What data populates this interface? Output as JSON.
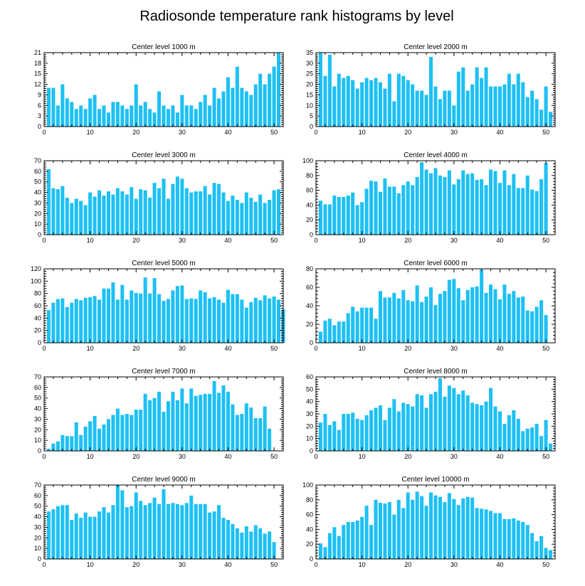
{
  "figure": {
    "title": "Radiosonde temperature rank histograms by level",
    "bar_color": "#1ec0f4"
  },
  "chart_data": [
    {
      "type": "bar",
      "title": "Center level 1000 m",
      "xlim": [
        0,
        52
      ],
      "xticks": [
        0,
        10,
        20,
        30,
        40,
        50
      ],
      "ylim": [
        0,
        21
      ],
      "yticks": [
        0,
        3,
        6,
        9,
        12,
        15,
        18,
        21
      ],
      "values": [
        11,
        11,
        6,
        12,
        8,
        7,
        5,
        6,
        5,
        8,
        9,
        5,
        6,
        4,
        7,
        7,
        6,
        5,
        6,
        12,
        6,
        7,
        5,
        4,
        10,
        6,
        5,
        6,
        4,
        9,
        6,
        6,
        5,
        7,
        9,
        6,
        11,
        8,
        10,
        14,
        11,
        17,
        11,
        10,
        9,
        12,
        15,
        12,
        15,
        17,
        21
      ]
    },
    {
      "type": "bar",
      "title": "Center level 2000 m",
      "xlim": [
        0,
        52
      ],
      "xticks": [
        0,
        10,
        20,
        30,
        40,
        50
      ],
      "ylim": [
        0,
        35
      ],
      "yticks": [
        0,
        5,
        10,
        15,
        20,
        25,
        30,
        35
      ],
      "values": [
        35,
        24,
        34,
        19,
        25,
        23,
        24,
        22,
        18,
        21,
        23,
        22,
        23,
        21,
        18,
        25,
        12,
        25,
        24,
        22,
        20,
        17,
        17,
        15,
        33,
        19,
        13,
        17,
        17,
        10,
        26,
        28,
        17,
        20,
        28,
        23,
        28,
        19,
        19,
        19,
        20,
        25,
        20,
        25,
        21,
        14,
        17,
        13,
        8,
        19,
        7
      ]
    },
    {
      "type": "bar",
      "title": "Center level 3000 m",
      "xlim": [
        0,
        52
      ],
      "xticks": [
        0,
        10,
        20,
        30,
        40,
        50
      ],
      "ylim": [
        0,
        70
      ],
      "yticks": [
        0,
        10,
        20,
        30,
        40,
        50,
        60,
        70
      ],
      "values": [
        62,
        44,
        43,
        46,
        35,
        30,
        34,
        32,
        28,
        40,
        36,
        42,
        37,
        41,
        38,
        44,
        41,
        38,
        45,
        34,
        43,
        42,
        35,
        49,
        44,
        53,
        34,
        48,
        55,
        53,
        44,
        40,
        41,
        41,
        46,
        38,
        49,
        48,
        40,
        32,
        37,
        33,
        30,
        40,
        35,
        31,
        38,
        30,
        33,
        42,
        43
      ]
    },
    {
      "type": "bar",
      "title": "Center level 4000 m",
      "xlim": [
        0,
        52
      ],
      "xticks": [
        0,
        10,
        20,
        30,
        40,
        50
      ],
      "ylim": [
        0,
        100
      ],
      "yticks": [
        0,
        20,
        40,
        60,
        80,
        100
      ],
      "values": [
        46,
        41,
        41,
        53,
        51,
        51,
        53,
        57,
        40,
        44,
        62,
        73,
        72,
        58,
        76,
        65,
        65,
        56,
        67,
        72,
        67,
        78,
        98,
        88,
        83,
        90,
        80,
        78,
        87,
        68,
        75,
        87,
        82,
        83,
        74,
        75,
        67,
        88,
        86,
        70,
        87,
        67,
        82,
        63,
        63,
        80,
        61,
        59,
        75,
        97
      ]
    },
    {
      "type": "bar",
      "title": "Center level 5000 m",
      "xlim": [
        0,
        52
      ],
      "xticks": [
        0,
        10,
        20,
        30,
        40,
        50
      ],
      "ylim": [
        0,
        120
      ],
      "yticks": [
        0,
        20,
        40,
        60,
        80,
        100,
        120
      ],
      "values": [
        53,
        65,
        71,
        72,
        58,
        65,
        71,
        69,
        73,
        74,
        76,
        70,
        88,
        88,
        98,
        70,
        94,
        70,
        85,
        81,
        80,
        106,
        80,
        105,
        79,
        68,
        71,
        85,
        92,
        93,
        71,
        72,
        71,
        85,
        82,
        72,
        74,
        70,
        65,
        86,
        79,
        79,
        70,
        57,
        66,
        73,
        69,
        77,
        72,
        75,
        70,
        54
      ]
    },
    {
      "type": "bar",
      "title": "Center level 6000 m",
      "xlim": [
        0,
        52
      ],
      "xticks": [
        0,
        10,
        20,
        30,
        40,
        50
      ],
      "ylim": [
        0,
        80
      ],
      "yticks": [
        0,
        20,
        40,
        60,
        80
      ],
      "values": [
        12,
        24,
        26,
        19,
        23,
        23,
        32,
        39,
        34,
        38,
        38,
        38,
        26,
        56,
        49,
        49,
        54,
        48,
        57,
        46,
        45,
        62,
        44,
        50,
        60,
        41,
        53,
        56,
        68,
        69,
        59,
        46,
        57,
        60,
        61,
        79,
        54,
        63,
        58,
        47,
        63,
        53,
        56,
        49,
        50,
        35,
        34,
        39,
        46,
        30
      ]
    },
    {
      "type": "bar",
      "title": "Center level 7000 m",
      "xlim": [
        0,
        52
      ],
      "xticks": [
        0,
        10,
        20,
        30,
        40,
        50
      ],
      "ylim": [
        0,
        70
      ],
      "yticks": [
        0,
        10,
        20,
        30,
        40,
        50,
        60,
        70
      ],
      "values": [
        2,
        7,
        9,
        15,
        14,
        14,
        27,
        15,
        23,
        28,
        33,
        21,
        25,
        30,
        34,
        40,
        34,
        35,
        34,
        39,
        39,
        54,
        48,
        50,
        56,
        37,
        47,
        56,
        48,
        59,
        45,
        59,
        52,
        53,
        54,
        54,
        66,
        55,
        62,
        56,
        44,
        34,
        35,
        45,
        41,
        31,
        31,
        42,
        21
      ]
    },
    {
      "type": "bar",
      "title": "Center level 8000 m",
      "xlim": [
        0,
        52
      ],
      "xticks": [
        0,
        10,
        20,
        30,
        40,
        50
      ],
      "ylim": [
        0,
        60
      ],
      "yticks": [
        0,
        10,
        20,
        30,
        40,
        50,
        60
      ],
      "values": [
        23,
        30,
        21,
        24,
        17,
        30,
        30,
        31,
        26,
        25,
        29,
        33,
        35,
        37,
        25,
        35,
        42,
        32,
        39,
        38,
        36,
        46,
        45,
        35,
        46,
        48,
        59,
        44,
        53,
        51,
        46,
        49,
        45,
        39,
        38,
        37,
        40,
        51,
        36,
        32,
        22,
        29,
        33,
        26,
        16,
        18,
        19,
        22,
        12,
        25,
        6
      ]
    },
    {
      "type": "bar",
      "title": "Center level 9000 m",
      "xlim": [
        0,
        52
      ],
      "xticks": [
        0,
        10,
        20,
        30,
        40,
        50
      ],
      "ylim": [
        0,
        70
      ],
      "yticks": [
        0,
        10,
        20,
        30,
        40,
        50,
        60,
        70
      ],
      "values": [
        45,
        47,
        50,
        51,
        51,
        37,
        43,
        39,
        44,
        40,
        40,
        45,
        49,
        44,
        51,
        70,
        65,
        49,
        50,
        63,
        55,
        51,
        53,
        58,
        52,
        66,
        52,
        53,
        52,
        51,
        53,
        60,
        52,
        52,
        52,
        44,
        45,
        51,
        39,
        37,
        33,
        29,
        25,
        31,
        26,
        32,
        29,
        24,
        26,
        16
      ]
    },
    {
      "type": "bar",
      "title": "Center level 10000 m",
      "xlim": [
        0,
        52
      ],
      "xticks": [
        0,
        10,
        20,
        30,
        40,
        50
      ],
      "ylim": [
        0,
        100
      ],
      "yticks": [
        0,
        20,
        40,
        60,
        80,
        100
      ],
      "values": [
        21,
        16,
        35,
        43,
        31,
        46,
        50,
        50,
        52,
        57,
        72,
        46,
        80,
        76,
        75,
        77,
        60,
        80,
        69,
        90,
        80,
        91,
        85,
        72,
        90,
        86,
        84,
        77,
        89,
        81,
        73,
        82,
        84,
        83,
        69,
        68,
        67,
        65,
        62,
        62,
        54,
        54,
        55,
        52,
        50,
        46,
        35,
        24,
        31,
        15,
        12
      ]
    }
  ]
}
